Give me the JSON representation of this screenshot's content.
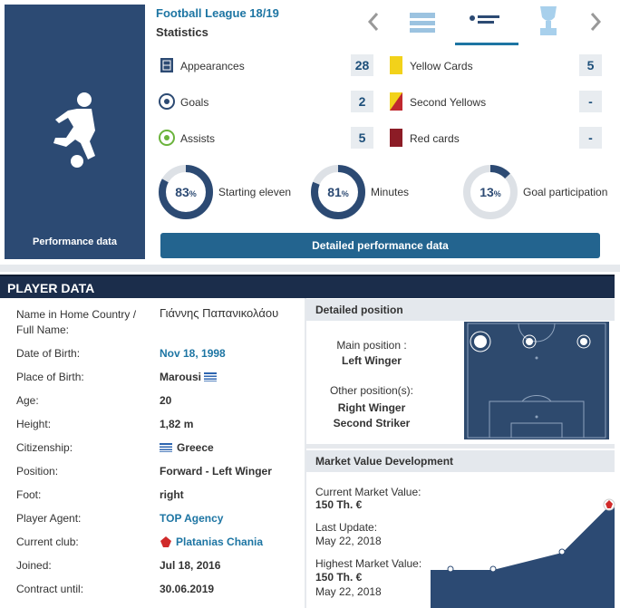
{
  "performance": {
    "side_label": "Performance data",
    "competition": "Football League 18/19",
    "subtitle": "Statistics",
    "stats": [
      {
        "label": "Appearances",
        "value": "28"
      },
      {
        "label": "Goals",
        "value": "2"
      },
      {
        "label": "Assists",
        "value": "5"
      },
      {
        "label": "Yellow Cards",
        "value": "5"
      },
      {
        "label": "Second Yellows",
        "value": "-"
      },
      {
        "label": "Red cards",
        "value": "-"
      }
    ],
    "rings": [
      {
        "value": 83,
        "unit": "%",
        "label": "Starting eleven"
      },
      {
        "value": 81,
        "unit": "%",
        "label": "Minutes"
      },
      {
        "value": 13,
        "unit": "%",
        "label": "Goal participation"
      }
    ],
    "button": "Detailed performance data"
  },
  "player_data": {
    "title": "PLAYER DATA",
    "rows": [
      [
        "Name in Home Country / Full Name:",
        "Γιάννης Παπανικολάου"
      ],
      [
        "Date of Birth:",
        "Nov 18, 1998"
      ],
      [
        "Place of Birth:",
        "Marousi"
      ],
      [
        "Age:",
        "20"
      ],
      [
        "Height:",
        "1,82 m"
      ],
      [
        "Citizenship:",
        "Greece"
      ],
      [
        "Position:",
        "Forward - Left Winger"
      ],
      [
        "Foot:",
        "right"
      ],
      [
        "Player Agent:",
        "TOP Agency"
      ],
      [
        "Current club:",
        "Platanias Chania"
      ],
      [
        "Joined:",
        "Jul 18, 2016"
      ],
      [
        "Contract until:",
        "30.06.2019"
      ]
    ]
  },
  "position": {
    "title": "Detailed position",
    "main_label": "Main position :",
    "main": "Left Winger",
    "other_label": "Other position(s):",
    "other": [
      "Right Winger",
      "Second Striker"
    ]
  },
  "market": {
    "title": "Market Value Development",
    "current_label": "Current Market Value:",
    "current": "150 Th. €",
    "update_label": "Last Update:",
    "update": "May 22, 2018",
    "highest_label": "Highest Market Value:",
    "highest": "150 Th. €",
    "highest_date": "May 22, 2018"
  }
}
